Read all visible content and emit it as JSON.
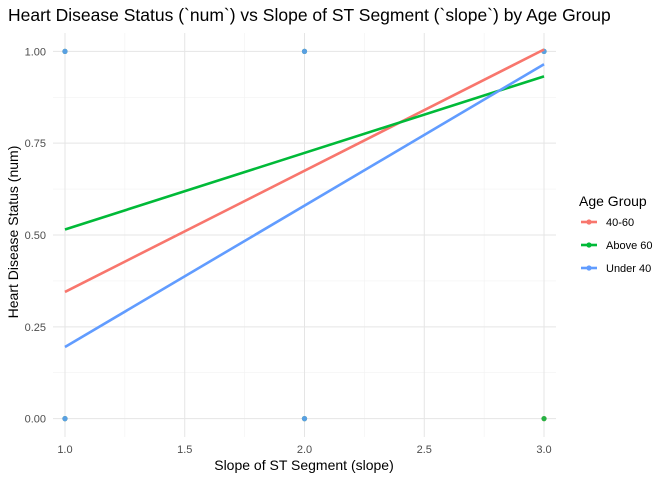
{
  "chart_data": {
    "type": "scatter",
    "title": "Heart Disease Status (`num`) vs Slope of ST Segment (`slope`) by Age Group",
    "xlabel": "Slope of ST Segment (slope)",
    "ylabel": "Heart Disease Status (num)",
    "xlim": [
      0.95,
      3.05
    ],
    "ylim": [
      -0.05,
      1.05
    ],
    "x_ticks": [
      1.0,
      1.5,
      2.0,
      2.5,
      3.0
    ],
    "x_tick_labels": [
      "1.0",
      "1.5",
      "2.0",
      "2.5",
      "3.0"
    ],
    "y_ticks": [
      0.0,
      0.25,
      0.5,
      0.75,
      1.0
    ],
    "y_tick_labels": [
      "0.00",
      "0.25",
      "0.50",
      "0.75",
      "1.00"
    ],
    "grid": true,
    "legend": {
      "title": "Age Group",
      "position": "right"
    },
    "series": [
      {
        "name": "40-60",
        "color": "#F8766D",
        "points": [
          {
            "x": 1,
            "y": 1
          },
          {
            "x": 1,
            "y": 0
          },
          {
            "x": 2,
            "y": 1
          },
          {
            "x": 2,
            "y": 0
          },
          {
            "x": 3,
            "y": 1
          },
          {
            "x": 3,
            "y": 0
          }
        ],
        "fit_line": {
          "x": [
            1,
            3
          ],
          "y": [
            0.345,
            1.005
          ]
        }
      },
      {
        "name": "Above 60",
        "color": "#00BA38",
        "points": [
          {
            "x": 1,
            "y": 1
          },
          {
            "x": 1,
            "y": 0
          },
          {
            "x": 2,
            "y": 1
          },
          {
            "x": 2,
            "y": 0
          },
          {
            "x": 3,
            "y": 1
          },
          {
            "x": 3,
            "y": 0
          }
        ],
        "fit_line": {
          "x": [
            1,
            3
          ],
          "y": [
            0.515,
            0.932
          ]
        }
      },
      {
        "name": "Under 40",
        "color": "#619CFF",
        "points": [
          {
            "x": 1,
            "y": 1
          },
          {
            "x": 1,
            "y": 0
          },
          {
            "x": 2,
            "y": 1
          },
          {
            "x": 2,
            "y": 0
          },
          {
            "x": 3,
            "y": 1
          }
        ],
        "fit_line": {
          "x": [
            1,
            3
          ],
          "y": [
            0.195,
            0.965
          ]
        }
      }
    ]
  }
}
